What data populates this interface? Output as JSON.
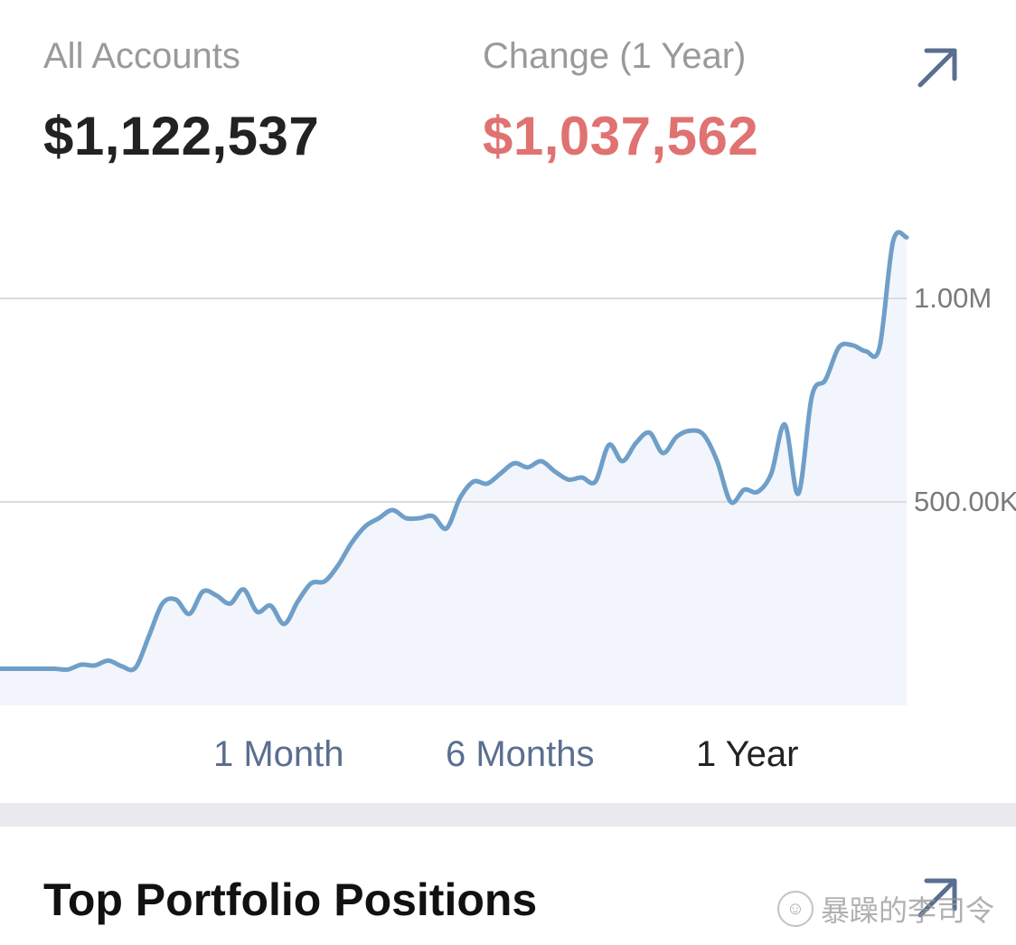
{
  "summary": {
    "all_accounts_label": "All Accounts",
    "all_accounts_value": "$1,122,537",
    "change_label": "Change (1 Year)",
    "change_value": "$1,037,562"
  },
  "icons": {
    "expand_top": "arrow-up-right-icon",
    "expand_bottom": "arrow-up-right-icon"
  },
  "colors": {
    "accent": "#5a6e91",
    "change_negative": "#e07272",
    "line": "#6f9fc8",
    "area": "#f2f5fb",
    "grid": "#dcdcdc"
  },
  "range_tabs": [
    {
      "label": "1 Month",
      "active": false
    },
    {
      "label": "6 Months",
      "active": false
    },
    {
      "label": "1 Year",
      "active": true
    }
  ],
  "section": {
    "title": "Top Portfolio Positions"
  },
  "watermark": {
    "text": "暴躁的李司令"
  },
  "chart_data": {
    "type": "area",
    "y_unit": "dollars",
    "ylim": [
      0,
      1200000
    ],
    "y_ticks": [
      {
        "value": 1000000,
        "label": "1.00M"
      },
      {
        "value": 500000,
        "label": "500.00K"
      }
    ],
    "grid": true,
    "series": [
      {
        "values": [
          90000,
          90000,
          90000,
          90000,
          90000,
          88000,
          100000,
          98000,
          110000,
          96000,
          92000,
          170000,
          250000,
          260000,
          225000,
          280000,
          270000,
          250000,
          285000,
          230000,
          245000,
          200000,
          255000,
          300000,
          305000,
          345000,
          400000,
          440000,
          460000,
          480000,
          460000,
          460000,
          465000,
          435000,
          510000,
          550000,
          545000,
          570000,
          595000,
          585000,
          600000,
          575000,
          555000,
          560000,
          550000,
          640000,
          600000,
          645000,
          670000,
          620000,
          660000,
          675000,
          665000,
          600000,
          500000,
          530000,
          525000,
          570000,
          690000,
          520000,
          760000,
          800000,
          880000,
          885000,
          870000,
          880000,
          1140000,
          1150000
        ]
      }
    ]
  }
}
